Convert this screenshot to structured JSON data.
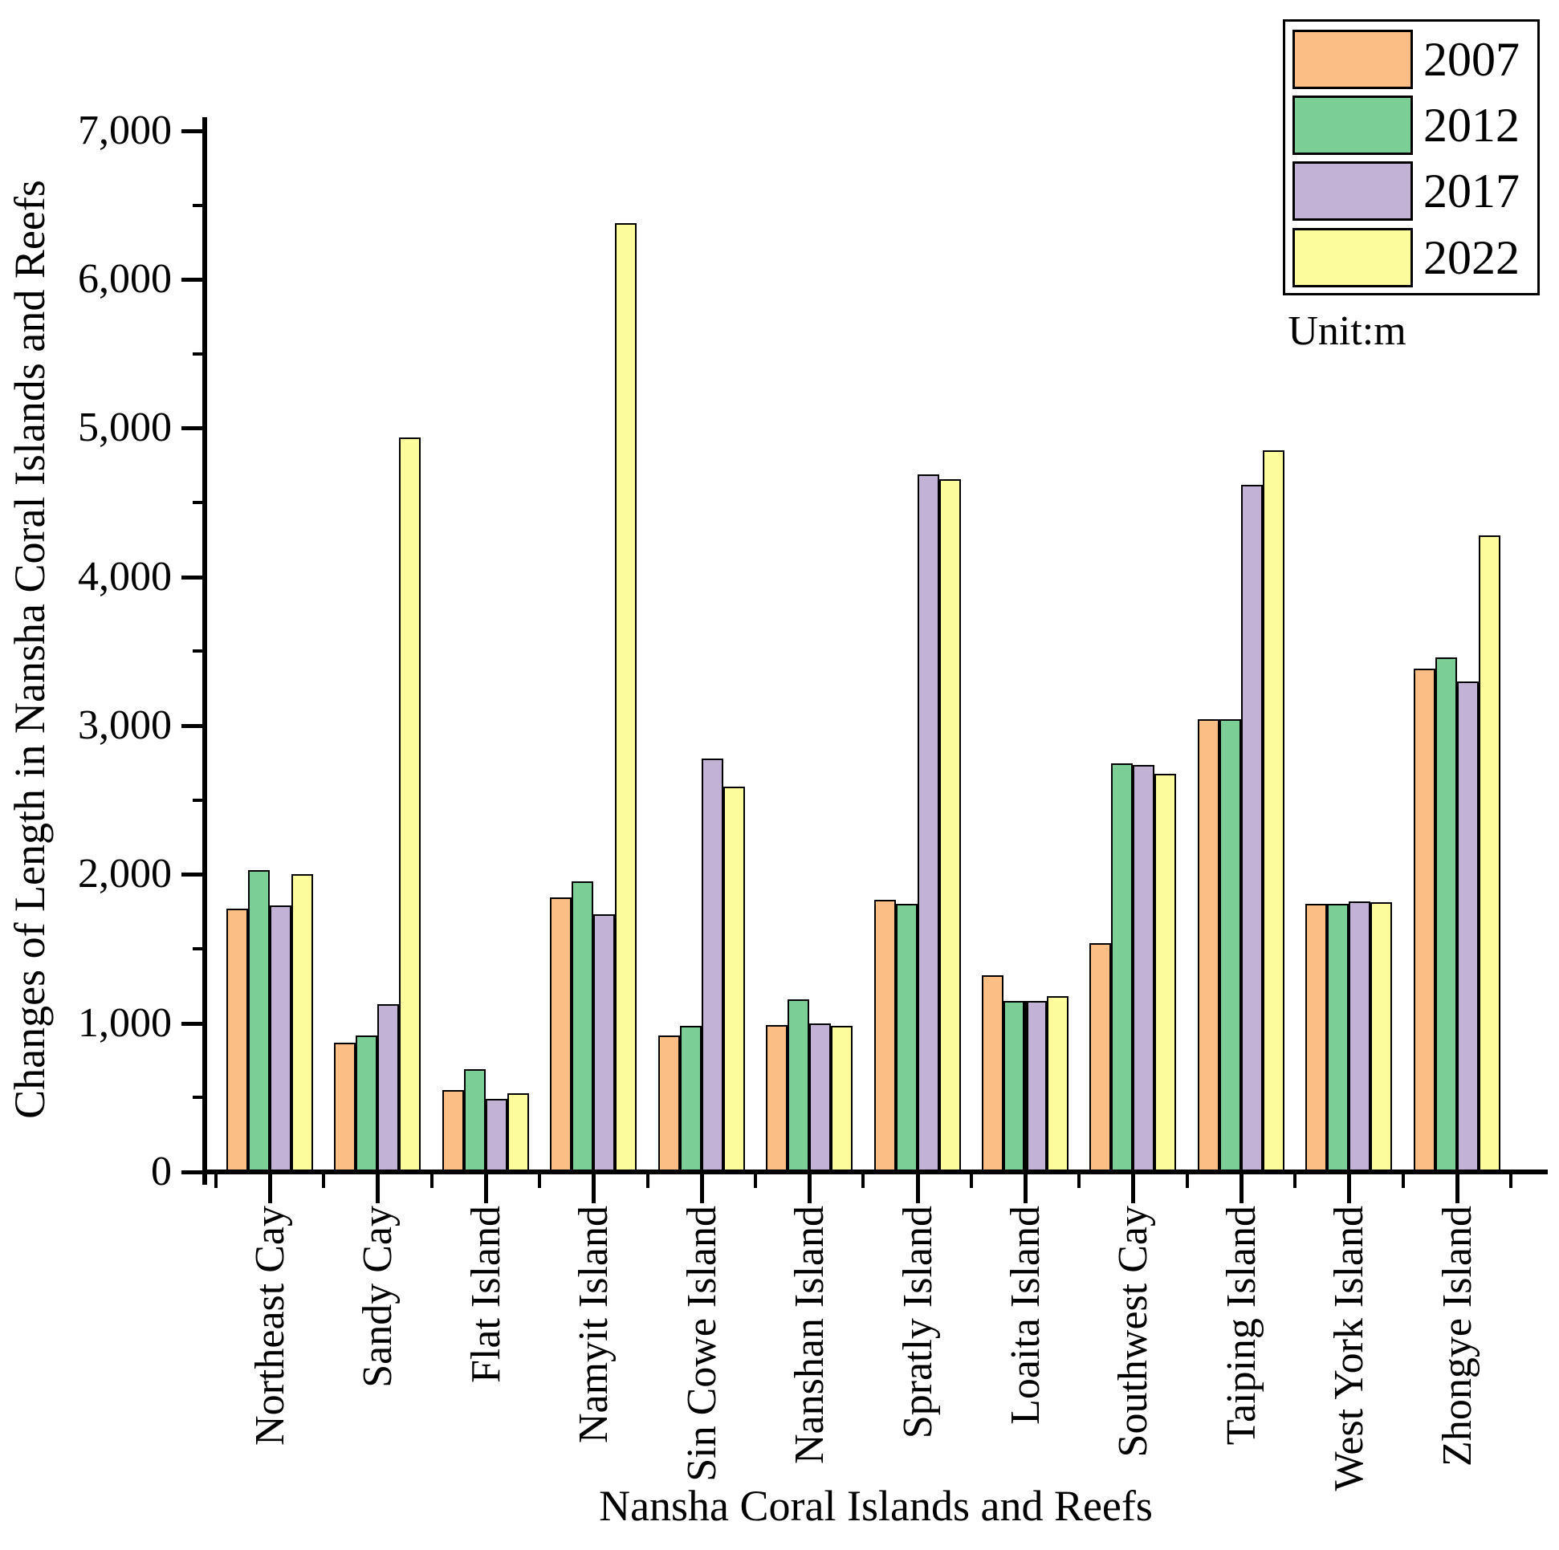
{
  "axes": {
    "y_ticks": [
      "0",
      "1,000",
      "2,000",
      "3,000",
      "4,000",
      "5,000",
      "6,000",
      "7,000"
    ]
  },
  "chart_data": {
    "type": "bar",
    "title": "",
    "xlabel": "Nansha Coral Islands and Reefs",
    "ylabel": "Changes of Length in Nansha Coral Islands and Reefs",
    "unit_note": "Unit:m",
    "ylim": [
      0,
      7000
    ],
    "y_major_step": 1000,
    "y_minor_step": 500,
    "grid": false,
    "legend_position": "top-right",
    "categories": [
      "Northeast Cay",
      "Sandy Cay",
      "Flat Island",
      "Namyit Island",
      "Sin Cowe Island",
      "Nanshan Island",
      "Spratly Island",
      "Loaita Island",
      "Southwest Cay",
      "Taiping Island",
      "West York Island",
      "Zhongye Island"
    ],
    "series": [
      {
        "name": "2007",
        "color": "#FBBE85",
        "values": [
          1770,
          870,
          550,
          1845,
          920,
          990,
          1830,
          1320,
          1540,
          3045,
          1805,
          3385
        ]
      },
      {
        "name": "2012",
        "color": "#7CCE97",
        "values": [
          2030,
          920,
          690,
          1955,
          980,
          1160,
          1805,
          1150,
          2745,
          3045,
          1805,
          3460
        ]
      },
      {
        "name": "2017",
        "color": "#C2B2D6",
        "values": [
          1790,
          1130,
          490,
          1730,
          2780,
          1000,
          4690,
          1150,
          2735,
          4620,
          1820,
          3300
        ]
      },
      {
        "name": "2022",
        "color": "#FCFC9D",
        "values": [
          2000,
          4940,
          530,
          6380,
          2590,
          980,
          4660,
          1180,
          2675,
          4850,
          1815,
          4280
        ]
      }
    ],
    "center_line": {
      "category": "Loaita Island",
      "top_value": 1150
    }
  }
}
